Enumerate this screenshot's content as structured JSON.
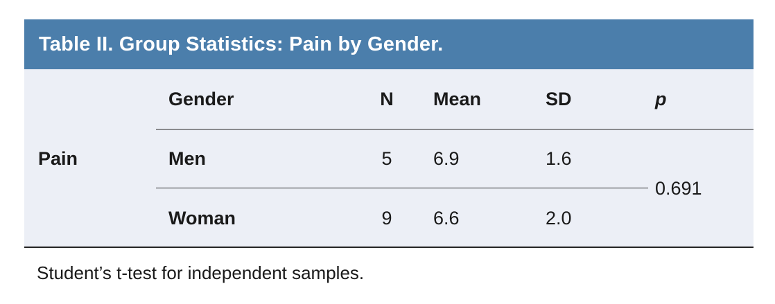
{
  "title": "Table II. Group Statistics: Pain by Gender.",
  "table": {
    "row_label": "Pain",
    "columns": [
      "Gender",
      "N",
      "Mean",
      "SD",
      "p"
    ],
    "rows": [
      {
        "gender": "Men",
        "n": "5",
        "mean": "6.9",
        "sd": "1.6"
      },
      {
        "gender": "Woman",
        "n": "9",
        "mean": "6.6",
        "sd": "2.0"
      }
    ],
    "p_value": "0.691"
  },
  "footnote": "Student’s t-test for independent samples.",
  "colors": {
    "header_bg": "#4b7eab",
    "body_bg": "#eceff6",
    "line": "#242424",
    "title_text": "#ffffff",
    "body_text": "#1a1a1a"
  }
}
